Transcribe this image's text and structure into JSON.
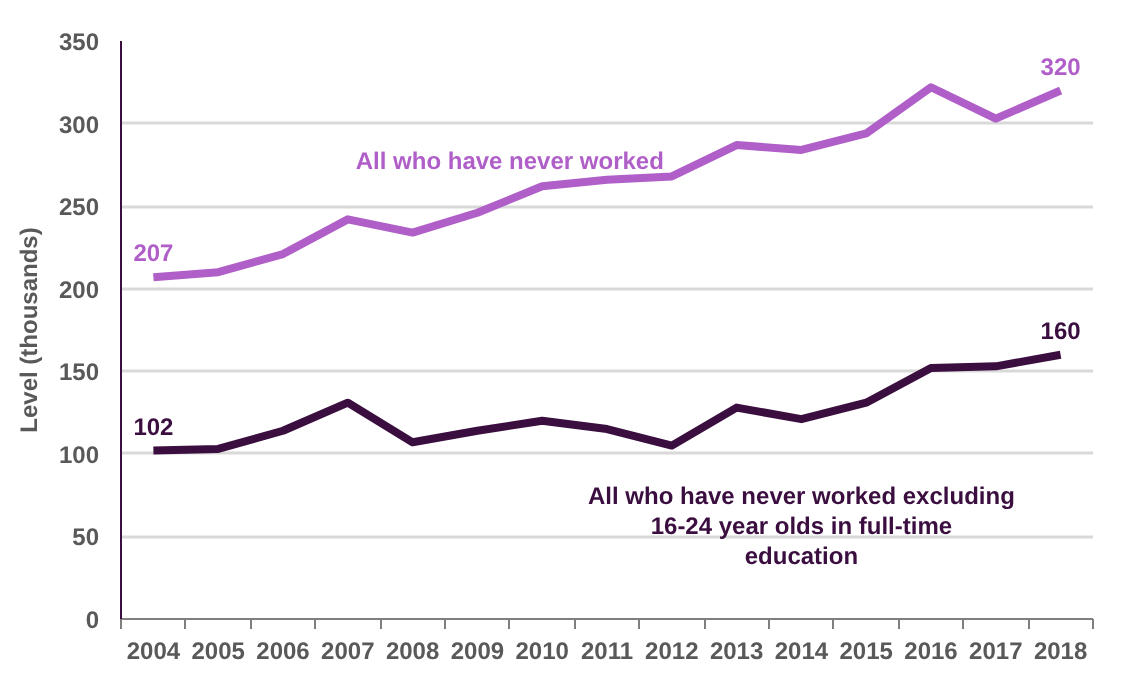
{
  "chart_data": {
    "type": "line",
    "ylabel": "Level (thousands)",
    "categories": [
      "2004",
      "2005",
      "2006",
      "2007",
      "2008",
      "2009",
      "2010",
      "2011",
      "2012",
      "2013",
      "2014",
      "2015",
      "2016",
      "2017",
      "2018"
    ],
    "series": [
      {
        "name": "All who have never worked",
        "color": "#b05fc8",
        "values": [
          207,
          210,
          221,
          242,
          234,
          246,
          262,
          266,
          268,
          287,
          284,
          294,
          322,
          303,
          320
        ],
        "value_labels": [
          "207",
          null,
          null,
          null,
          null,
          null,
          null,
          null,
          null,
          null,
          null,
          null,
          null,
          null,
          "320"
        ]
      },
      {
        "name": "All who have never worked excluding 16-24 year olds in full-time education",
        "color": "#3b0e40",
        "values": [
          102,
          103,
          114,
          131,
          107,
          114,
          120,
          115,
          105,
          128,
          121,
          131,
          152,
          153,
          160
        ],
        "value_labels": [
          "102",
          null,
          null,
          null,
          null,
          null,
          null,
          null,
          null,
          null,
          null,
          null,
          null,
          null,
          "160"
        ]
      }
    ],
    "ylim": [
      0,
      350
    ],
    "yticks": [
      0,
      50,
      100,
      150,
      200,
      250,
      300,
      350
    ],
    "grid": "y",
    "legend": false,
    "marker": "none",
    "line_style": "solid"
  }
}
